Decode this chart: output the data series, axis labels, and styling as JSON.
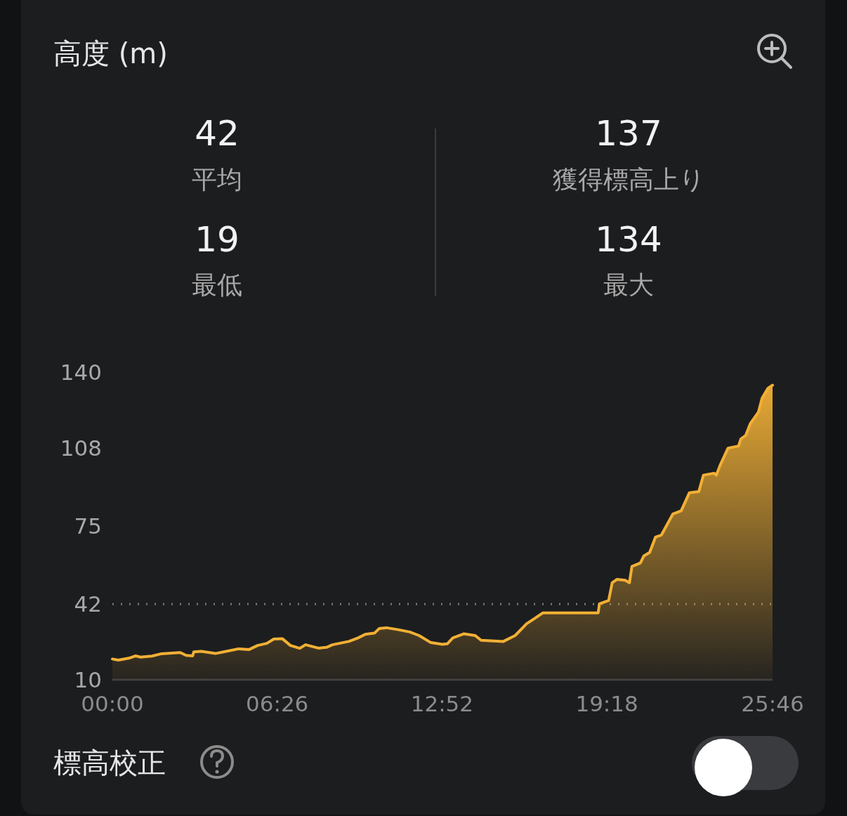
{
  "chart_data": {
    "type": "area",
    "title": "高度 (m)",
    "annotations": [
      "42",
      "平均",
      "137",
      "獲得標高上り",
      "19",
      "最低",
      "134",
      "最大",
      "標高校正"
    ],
    "x": [
      0,
      0.23,
      0.64,
      0.91,
      1.1,
      1.55,
      1.92,
      2.65,
      2.88,
      3.13,
      3.18,
      3.47,
      4.02,
      4.48,
      4.93,
      5.34,
      5.67,
      6.03,
      6.3,
      6.63,
      6.95,
      7.31,
      7.54,
      8.04,
      8.36,
      8.59,
      9.23,
      9.59,
      9.87,
      10.23,
      10.42,
      10.69,
      11.15,
      11.6,
      11.97,
      12.43,
      12.88,
      13.07,
      13.29,
      13.71,
      14.16,
      14.39,
      15.26,
      15.72,
      16.17,
      16.81,
      18.96,
      19.01,
      19.37,
      19.51,
      19.69,
      20.01,
      20.18,
      20.28,
      20.61,
      20.74,
      20.97,
      21.2,
      21.43,
      21.88,
      22.2,
      22.52,
      22.89,
      23.07,
      23.48,
      23.57,
      23.71,
      24.03,
      24.44,
      24.53,
      24.72,
      24.9,
      25.22,
      25.36,
      25.58,
      25.767
    ],
    "series": [
      {
        "color": "#f2b035",
        "values": [
          18.8,
          18.3,
          19.1,
          20.1,
          19.6,
          20.0,
          21.0,
          21.5,
          20.3,
          20.1,
          21.8,
          22.0,
          21.1,
          22.1,
          23.1,
          22.8,
          24.5,
          25.4,
          27.2,
          27.4,
          24.5,
          23.3,
          24.8,
          23.4,
          23.7,
          24.8,
          26.2,
          27.7,
          29.2,
          29.7,
          31.7,
          32.0,
          31.2,
          30.2,
          28.7,
          25.7,
          25.0,
          25.2,
          27.7,
          29.4,
          28.7,
          26.7,
          26.2,
          28.7,
          33.7,
          38.3,
          38.3,
          42.1,
          43.5,
          51.0,
          52.4,
          52.1,
          51.0,
          57.9,
          59.4,
          62.3,
          63.8,
          70.3,
          71.2,
          80.1,
          81.4,
          89.0,
          89.5,
          96.5,
          97.3,
          96.5,
          100.4,
          107.9,
          108.8,
          111.8,
          113.3,
          118.3,
          123.2,
          129.1,
          133.1,
          134.5
        ]
      }
    ],
    "xlim": [
      0,
      25.767
    ],
    "xticks": [
      {
        "value": 0,
        "label": "00:00"
      },
      {
        "value": 6.433,
        "label": "06:26"
      },
      {
        "value": 12.867,
        "label": "12:52"
      },
      {
        "value": 19.3,
        "label": "19:18"
      },
      {
        "value": 25.767,
        "label": "25:46"
      }
    ],
    "ylim": [
      10,
      140
    ],
    "yticks": [
      10,
      42,
      75,
      108,
      140
    ],
    "ref_lines": [
      {
        "axis": "y",
        "value": 42,
        "color": "#77787a",
        "line_style": "dotted"
      }
    ]
  }
}
